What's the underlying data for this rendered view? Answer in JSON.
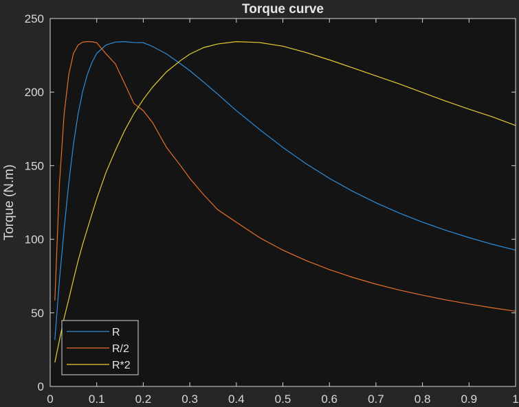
{
  "chart_data": {
    "type": "line",
    "title": "Torque curve",
    "xlabel": "",
    "ylabel": "Torque (N.m)",
    "xlim": [
      0,
      1
    ],
    "ylim": [
      0,
      250
    ],
    "xticks": [
      0,
      0.1,
      0.2,
      0.3,
      0.4,
      0.5,
      0.6,
      0.7,
      0.8,
      0.9,
      1
    ],
    "xtick_labels": [
      "0",
      "0.1",
      "0.2",
      "0.3",
      "0.4",
      "0.5",
      "0.6",
      "0.7",
      "0.8",
      "0.9",
      "1"
    ],
    "yticks": [
      0,
      50,
      100,
      150,
      200,
      250
    ],
    "ytick_labels": [
      "0",
      "50",
      "100",
      "150",
      "200",
      "250"
    ],
    "grid": false,
    "legend_position": "bottom-left",
    "colors": {
      "figure_bg": "#262626",
      "axes_bg": "#141414",
      "axis": "#d9d9d9"
    },
    "x": [
      0.01,
      0.02,
      0.03,
      0.04,
      0.05,
      0.06,
      0.07,
      0.08,
      0.09,
      0.1,
      0.12,
      0.14,
      0.16,
      0.18,
      0.2,
      0.22,
      0.25,
      0.28,
      0.3,
      0.33,
      0.36,
      0.4,
      0.45,
      0.5,
      0.55,
      0.6,
      0.65,
      0.7,
      0.75,
      0.8,
      0.85,
      0.9,
      0.95,
      1.0
    ],
    "series": [
      {
        "name": "R",
        "color": "#2f8fdc",
        "values": [
          31.6,
          72.6,
          107.1,
          138.3,
          164.5,
          185.2,
          200.6,
          212.1,
          220.4,
          226.3,
          232.0,
          234.0,
          234.3,
          233.7,
          233.6,
          231.0,
          226.0,
          219.2,
          214.6,
          206.7,
          198.6,
          187.4,
          174.6,
          162.4,
          151.3,
          141.4,
          132.6,
          124.8,
          117.8,
          111.6,
          106.1,
          101.1,
          96.6,
          92.6
        ]
      },
      {
        "name": "R/2",
        "color": "#e8702a",
        "values": [
          58.4,
          138.3,
          185.2,
          212.1,
          226.3,
          232.0,
          234.0,
          234.3,
          234.2,
          233.6,
          226.0,
          219.2,
          205.8,
          192.2,
          187.4,
          179.3,
          162.4,
          150.1,
          141.4,
          130.2,
          120.1,
          111.6,
          101.1,
          92.6,
          85.5,
          79.4,
          74.1,
          69.5,
          65.5,
          62.0,
          58.8,
          56.0,
          53.4,
          51.1
        ]
      },
      {
        "name": "R*2",
        "color": "#e6cf30",
        "values": [
          16.2,
          31.6,
          46.6,
          59.3,
          72.6,
          85.3,
          96.8,
          107.1,
          117.4,
          127.5,
          145.5,
          160.3,
          173.9,
          185.4,
          195.0,
          203.4,
          213.8,
          221.4,
          225.8,
          230.3,
          232.7,
          234.3,
          233.7,
          231.2,
          226.9,
          221.9,
          216.5,
          211.0,
          205.6,
          199.7,
          193.9,
          188.4,
          183.2,
          177.3
        ]
      }
    ]
  }
}
